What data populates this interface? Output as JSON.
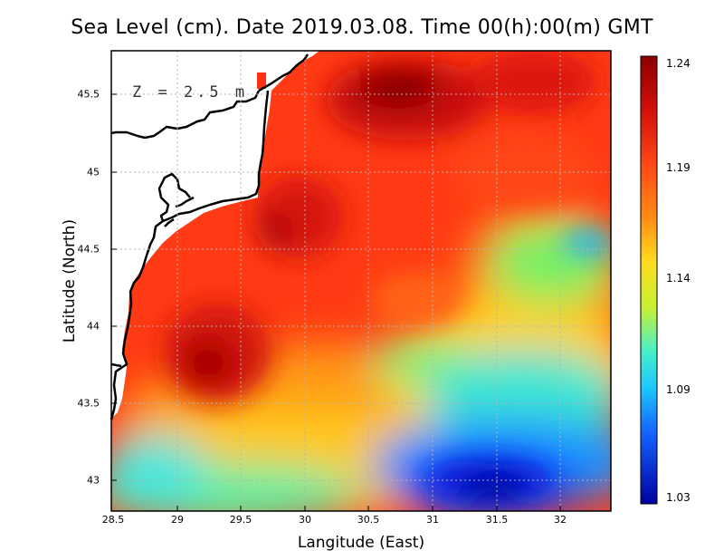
{
  "title": "Sea Level (cm). Date 2019.03.08. Time 00(h):00(m) GMT",
  "depth_label": "Z = 2.5 m",
  "x_axis": {
    "title": "Langitude (East)",
    "ticks": [
      "28.5",
      "29",
      "29.5",
      "30",
      "30.5",
      "31",
      "31.5",
      "32"
    ]
  },
  "y_axis": {
    "title": "Latitude (North)",
    "ticks": [
      "45.5",
      "45",
      "44.5",
      "44",
      "43.5",
      "43"
    ]
  },
  "colorbar": {
    "labels": [
      "1.24",
      "1.19",
      "1.14",
      "1.09",
      "1.03"
    ],
    "colors": [
      "#8b0000",
      "#e11a0a",
      "#ff5a14",
      "#ff9a14",
      "#ffe120",
      "#b4f032",
      "#32e6e6",
      "#1eb4ff",
      "#1050ff",
      "#0000b4"
    ]
  },
  "chart_data": {
    "type": "heatmap",
    "title": "Sea Level (cm). Date 2019.03.08. Time 00(h):00(m) GMT",
    "xlabel": "Langitude (East)",
    "ylabel": "Latitude (North)",
    "xlim": [
      28.5,
      32.4
    ],
    "ylim": [
      42.8,
      45.8
    ],
    "value_range": [
      1.03,
      1.24
    ],
    "note": "Sea level field; highest (~1.24) near 30.8E 45.5N and 29.2E 43.7N, lowest (~1.03) near 31.5E 43.0N"
  }
}
